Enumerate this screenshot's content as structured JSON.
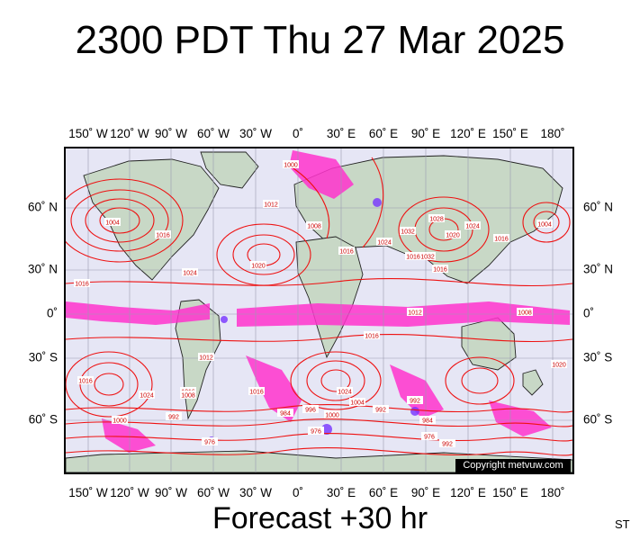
{
  "title": "2300 PDT Thu 27 Mar 2025",
  "footer": {
    "forecast": "Forecast +30 hr",
    "corner": "ST"
  },
  "map": {
    "copyright": "Copyright metvuw.com",
    "lon_labels_top": [
      "150˚ W",
      "120˚ W",
      "90˚ W",
      "60˚ W",
      "30˚ W",
      "0˚",
      "30˚ E",
      "60˚ E",
      "90˚ E",
      "120˚ E",
      "150˚ E",
      "180˚"
    ],
    "lon_labels_bottom": [
      "150˚ W",
      "120˚ W",
      "90˚ W",
      "60˚ W",
      "30˚ W",
      "0˚",
      "30˚ E",
      "60˚ E",
      "90˚ E",
      "120˚ E",
      "150˚ E",
      "180˚"
    ],
    "lat_labels_left": [
      "60˚ N",
      "30˚ N",
      "0˚",
      "30˚ S",
      "60˚ S"
    ],
    "lat_labels_right": [
      "60˚ N",
      "30˚ N",
      "0˚",
      "30˚ S",
      "60˚ S"
    ],
    "isobar_labels": [
      "1016",
      "1004",
      "1024",
      "1016",
      "1020",
      "1000",
      "1012",
      "1008",
      "1016",
      "1024",
      "1032",
      "1028",
      "1032",
      "1016",
      "1020",
      "1016",
      "1024",
      "1004",
      "1016",
      "1012",
      "1016",
      "1024",
      "1000",
      "1016",
      "1024",
      "1016",
      "1008",
      "992",
      "996",
      "1000",
      "1004",
      "992",
      "976",
      "984",
      "992",
      "984",
      "976",
      "976",
      "992",
      "1012",
      "1008",
      "1016",
      "1020"
    ]
  }
}
